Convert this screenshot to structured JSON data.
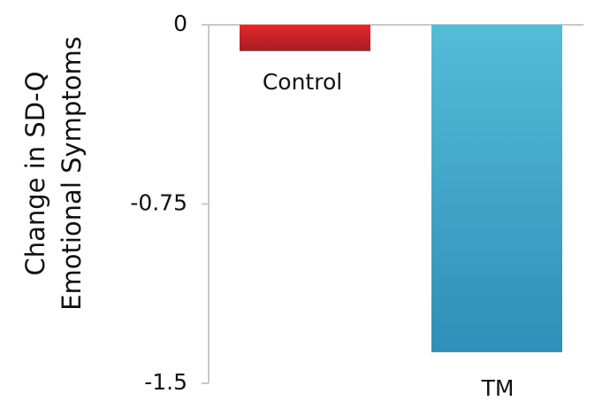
{
  "chart_data": {
    "type": "bar",
    "categories": [
      "Control",
      "TM"
    ],
    "values": [
      -0.11,
      -1.37
    ],
    "ylabel_lines": [
      "Change in SD-Q",
      "Emotional Symptoms"
    ],
    "xlabel": "",
    "ylim": [
      -1.5,
      0
    ],
    "yticks": [
      0,
      -0.75,
      -1.5
    ],
    "ytick_labels": [
      "0",
      "-0.75",
      "-1.5"
    ],
    "grid": false,
    "colors": {
      "Control": [
        "#e8262b",
        "#a51d23"
      ],
      "TM": [
        "#55bcd6",
        "#2f8fb8"
      ]
    }
  }
}
